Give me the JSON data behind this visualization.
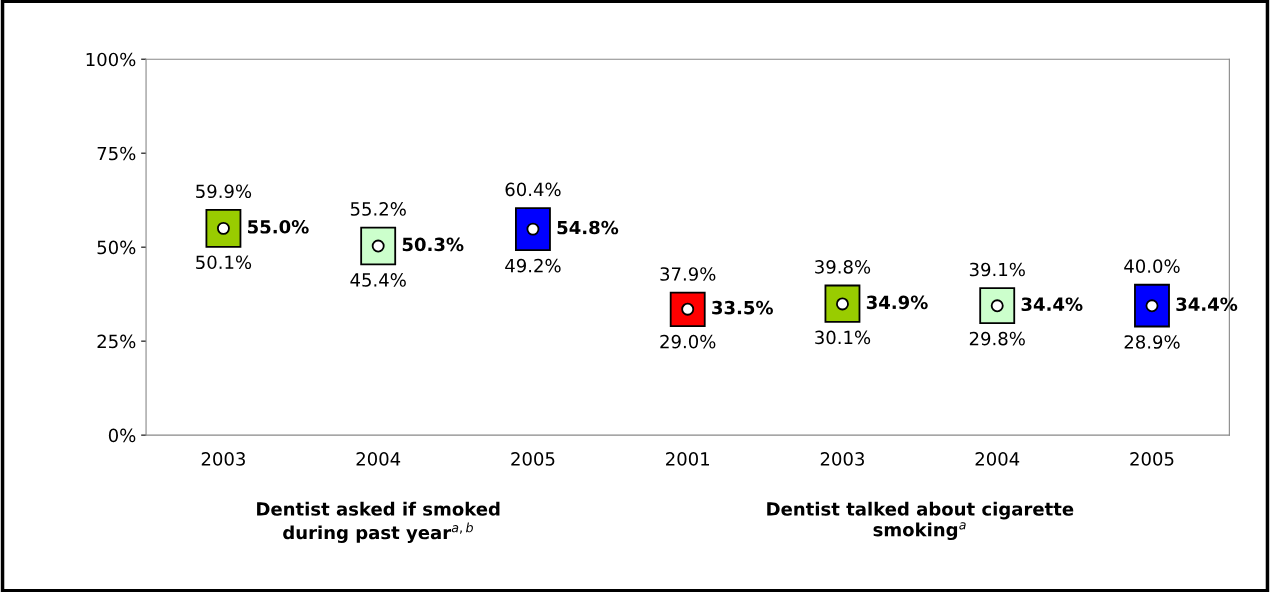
{
  "chart_data": {
    "type": "bar",
    "categories": [
      "2003",
      "2004",
      "2005",
      "2001",
      "2003",
      "2004",
      "2005"
    ],
    "series": [
      {
        "colors": [
          "#99cc00",
          "#ccffcc",
          "#0000ff",
          "#ff0000",
          "#99cc00",
          "#ccffcc",
          "#0000ff"
        ],
        "base": [
          50.1,
          45.4,
          49.2,
          29.0,
          30.1,
          29.8,
          28.9
        ],
        "values": [
          9.8,
          9.8,
          11.2,
          8.9,
          9.7,
          9.3,
          11.1
        ]
      },
      {
        "type": "scatter",
        "marker": "circle",
        "color": "#ffffff",
        "values": [
          55.0,
          50.3,
          54.8,
          33.5,
          34.9,
          34.4,
          34.4
        ],
        "value_labels": [
          "55.0%",
          "50.3%",
          "54.8%",
          "33.5%",
          "34.9%",
          "34.4%",
          "34.4%"
        ]
      }
    ],
    "ylim": [
      0,
      100
    ],
    "yticks": [
      {
        "value": 0,
        "label": "0%"
      },
      {
        "value": 25,
        "label": "25%"
      },
      {
        "value": 50,
        "label": "50%"
      },
      {
        "value": 75,
        "label": "75%"
      },
      {
        "value": 100,
        "label": "100%"
      }
    ],
    "grid": false,
    "legend": false,
    "annotations": [
      "Dentist asked if smoked\nduring past year$^{a,b}$",
      "Dentist talked about cigarette\nsmoking$^{a}$",
      {
        "text": "59.9%",
        "y": 59.9
      },
      {
        "text": "50.1%",
        "y": 50.1
      },
      {
        "text": "55.2%",
        "y": 55.2
      },
      {
        "text": "45.4%",
        "y": 45.4
      },
      {
        "text": "60.4%",
        "y": 60.4
      },
      {
        "text": "49.2%",
        "y": 49.2
      },
      {
        "text": "37.9%",
        "y": 37.9
      },
      {
        "text": "29.0%",
        "y": 29.0
      },
      {
        "text": "39.8%",
        "y": 39.8
      },
      {
        "text": "30.1%",
        "y": 30.1
      },
      {
        "text": "39.1%",
        "y": 39.1
      },
      {
        "text": "29.8%",
        "y": 29.8
      },
      {
        "text": "40.0%",
        "y": 40.0
      },
      {
        "text": "28.9%",
        "y": 28.9
      }
    ]
  }
}
